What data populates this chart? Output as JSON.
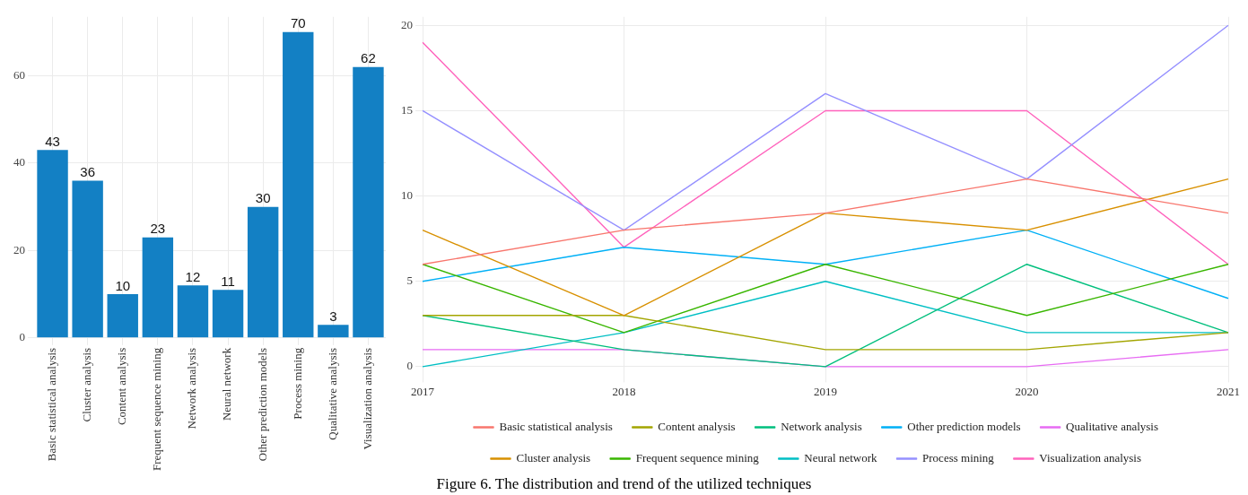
{
  "chart_data": [
    {
      "type": "bar",
      "categories": [
        "Basic statistical analysis",
        "Cluster analysis",
        "Content analysis",
        "Frequent sequence mining",
        "Network analysis",
        "Neural network",
        "Other prediction models",
        "Process mining",
        "Qualitative analysis",
        "Visualization analysis"
      ],
      "values": [
        43,
        36,
        10,
        23,
        12,
        11,
        30,
        70,
        3,
        62
      ],
      "color": "#1380c4",
      "ylim": [
        0,
        73.5
      ],
      "yticks": [
        0,
        20,
        40,
        60
      ],
      "grid": true,
      "data_labels": true
    },
    {
      "type": "line",
      "categories": [
        "2017",
        "2018",
        "2019",
        "2020",
        "2021"
      ],
      "series": [
        {
          "name": "Basic statistical analysis",
          "color": "#f8766d",
          "values": [
            6,
            8,
            9,
            11,
            9
          ]
        },
        {
          "name": "Cluster analysis",
          "color": "#d89000",
          "values": [
            8,
            3,
            9,
            8,
            11
          ]
        },
        {
          "name": "Content analysis",
          "color": "#a3a500",
          "values": [
            3,
            3,
            1,
            1,
            2
          ]
        },
        {
          "name": "Frequent sequence mining",
          "color": "#39b600",
          "values": [
            6,
            2,
            6,
            3,
            6
          ]
        },
        {
          "name": "Network analysis",
          "color": "#00bf7d",
          "values": [
            3,
            1,
            0,
            6,
            2
          ]
        },
        {
          "name": "Neural network",
          "color": "#00bfc4",
          "values": [
            0,
            2,
            5,
            2,
            2
          ]
        },
        {
          "name": "Other prediction models",
          "color": "#00b0f6",
          "values": [
            5,
            7,
            6,
            8,
            4
          ]
        },
        {
          "name": "Process mining",
          "color": "#9590ff",
          "values": [
            15,
            8,
            16,
            11,
            20
          ]
        },
        {
          "name": "Qualitative analysis",
          "color": "#e76bf3",
          "values": [
            1,
            1,
            0,
            0,
            1
          ]
        },
        {
          "name": "Visualization analysis",
          "color": "#ff62bc",
          "values": [
            19,
            7,
            15,
            15,
            6
          ]
        }
      ],
      "ylim": [
        -0.5,
        20.5
      ],
      "yticks": [
        0,
        5,
        10,
        15,
        20
      ],
      "grid": true,
      "legend": "bottom",
      "marker": "none",
      "line_style": "solid",
      "annotations": [
        "Figure 6. The distribution and trend of the utilized techniques"
      ]
    }
  ]
}
